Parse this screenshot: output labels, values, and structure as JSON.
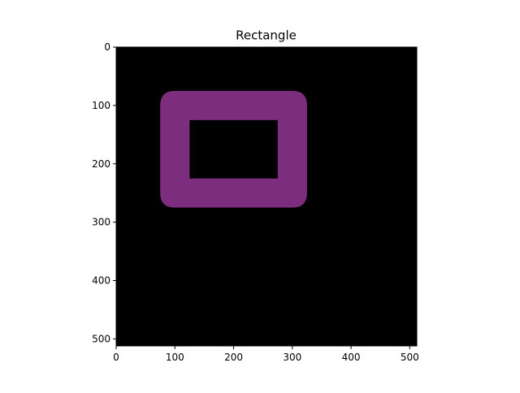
{
  "chart_data": {
    "type": "heatmap",
    "title": "Rectangle",
    "xlabel": "",
    "ylabel": "",
    "image_size": [
      512,
      512
    ],
    "xlim": [
      0,
      512
    ],
    "ylim": [
      512,
      0
    ],
    "x_ticks": [
      0,
      100,
      200,
      300,
      400,
      500
    ],
    "y_ticks": [
      0,
      100,
      200,
      300,
      400,
      500
    ],
    "x_tick_labels": [
      "0",
      "100",
      "200",
      "300",
      "400",
      "500"
    ],
    "y_tick_labels": [
      "0",
      "100",
      "200",
      "300",
      "400",
      "500"
    ],
    "background_color": "#000000",
    "shape": {
      "kind": "rounded-rectangle-outline",
      "x_min": 75,
      "x_max": 325,
      "y_min": 75,
      "y_max": 275,
      "inner_x_min": 125,
      "inner_x_max": 275,
      "inner_y_min": 125,
      "inner_y_max": 225,
      "corner_radius": 25,
      "color": "#7d2d7e"
    },
    "grid": false
  }
}
